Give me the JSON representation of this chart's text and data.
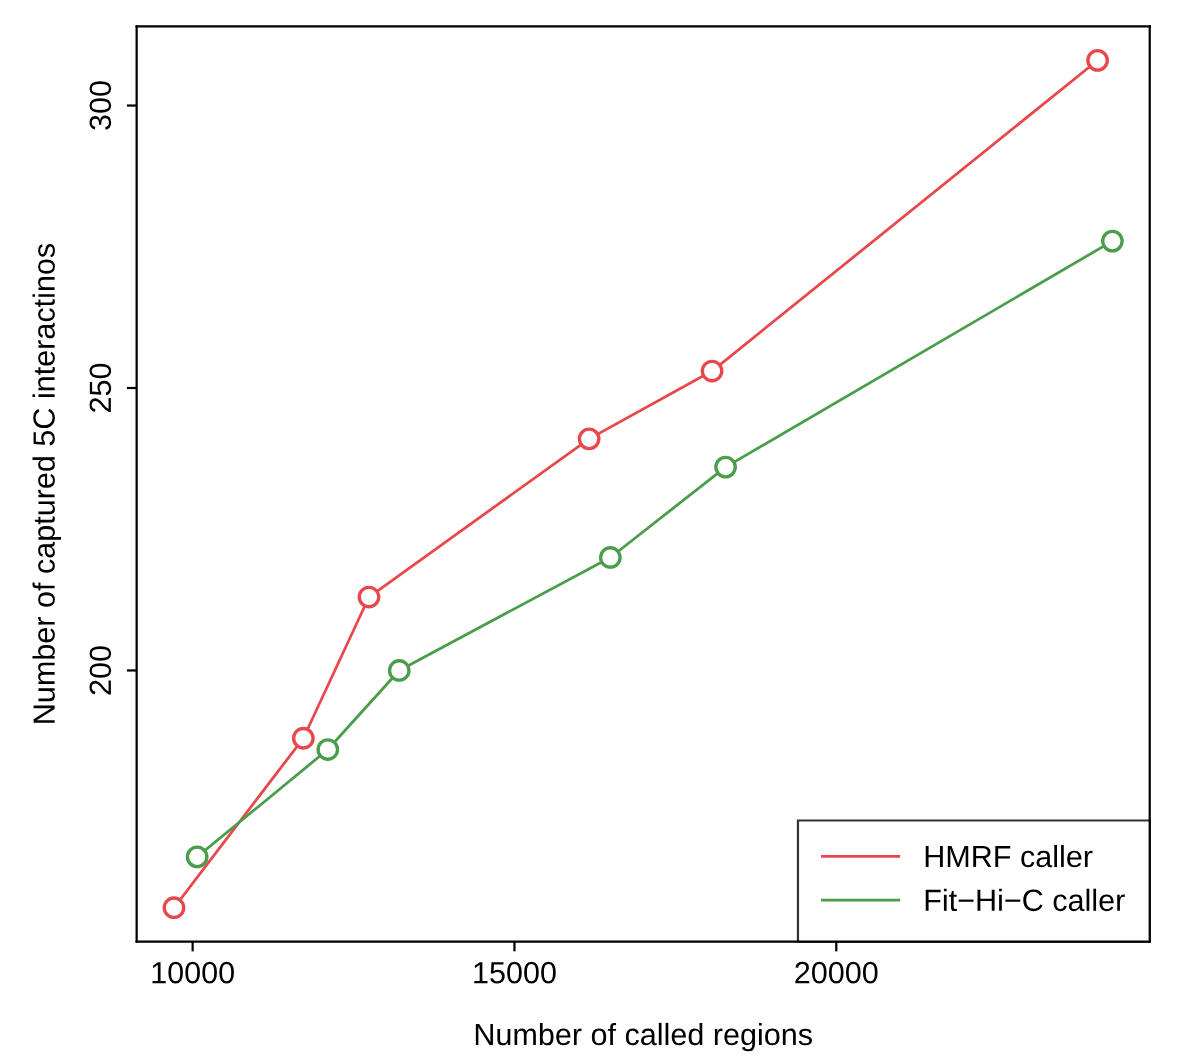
{
  "chart_data": {
    "type": "line",
    "xlabel": "Number of called regions",
    "ylabel": "Number of captured 5C interactinos",
    "xlim": [
      9130,
      24870
    ],
    "ylim": [
      152,
      314
    ],
    "xticks": [
      10000,
      15000,
      20000
    ],
    "yticks": [
      200,
      250,
      300
    ],
    "grid": false,
    "legend": "bottom right",
    "marker": "circle",
    "line_style": "solid",
    "series": [
      {
        "name": "HMRF caller",
        "color": "#e8474b",
        "x": [
          9710,
          11720,
          12740,
          16160,
          18070,
          24060
        ],
        "values": [
          158,
          188,
          213,
          241,
          253,
          308
        ]
      },
      {
        "name": "Fit−Hi−C caller",
        "color": "#4a9d4a",
        "x": [
          10070,
          12100,
          13210,
          16490,
          18280,
          24290
        ],
        "values": [
          167,
          186,
          200,
          220,
          236,
          276
        ]
      }
    ]
  }
}
